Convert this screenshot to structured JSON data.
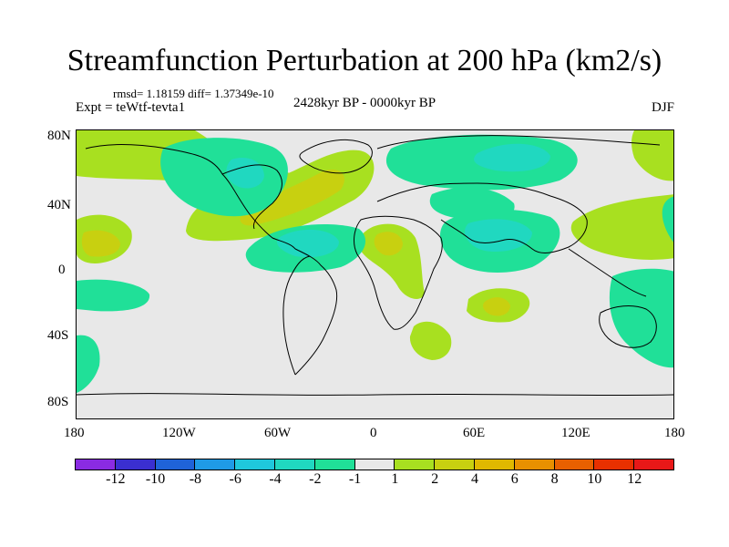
{
  "title": "Streamfunction Perturbation at 200 hPa (km2/s)",
  "stats": "rmsd= 1.18159 diff= 1.37349e-10",
  "expt": "Expt = teWtf-tevta1",
  "period": "2428kyr BP - 0000kyr BP",
  "season": "DJF",
  "lat_labels": [
    "80N",
    "40N",
    "0",
    "40S",
    "80S"
  ],
  "lon_labels": [
    "180",
    "120W",
    "60W",
    "0",
    "60E",
    "120E",
    "180"
  ],
  "colorbar": {
    "labels": [
      "-12",
      "-10",
      "-8",
      "-6",
      "-4",
      "-2",
      "-1",
      "1",
      "2",
      "4",
      "6",
      "8",
      "10",
      "12"
    ],
    "colors": [
      "#8a2be2",
      "#3a2fd0",
      "#1f63d8",
      "#1f9be6",
      "#1fc8dc",
      "#20d8c0",
      "#20e098",
      "#e8e8e8",
      "#a8e020",
      "#c8d010",
      "#e0b800",
      "#e89000",
      "#e86000",
      "#e83000",
      "#e81818"
    ]
  },
  "map_colors": {
    "neutral": "#e8e8e8",
    "pos1": "#a8e020",
    "pos2": "#c8d010",
    "neg1": "#20e098",
    "neg2": "#20d8c0",
    "neg3": "#1fc8dc"
  }
}
